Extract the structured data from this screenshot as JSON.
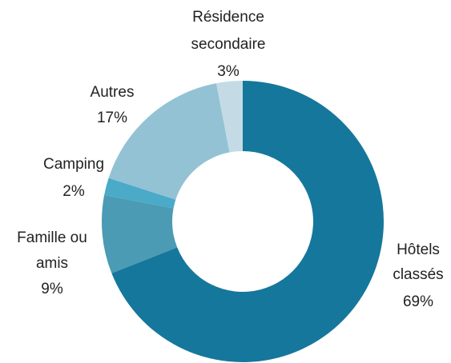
{
  "chart_data": {
    "type": "donut",
    "categories": [
      [
        "Hôtels",
        "classés"
      ],
      [
        "Famille ou",
        "amis"
      ],
      [
        "Camping"
      ],
      [
        "Autres"
      ],
      [
        "Résidence",
        "secondaire"
      ]
    ],
    "values": [
      69,
      9,
      2,
      17,
      3
    ],
    "value_labels": [
      "69%",
      "9%",
      "2%",
      "17%",
      "3%"
    ],
    "colors": [
      "#15779b",
      "#4a9bb3",
      "#4aaac8",
      "#93c2d4",
      "#c4dbe5"
    ]
  }
}
